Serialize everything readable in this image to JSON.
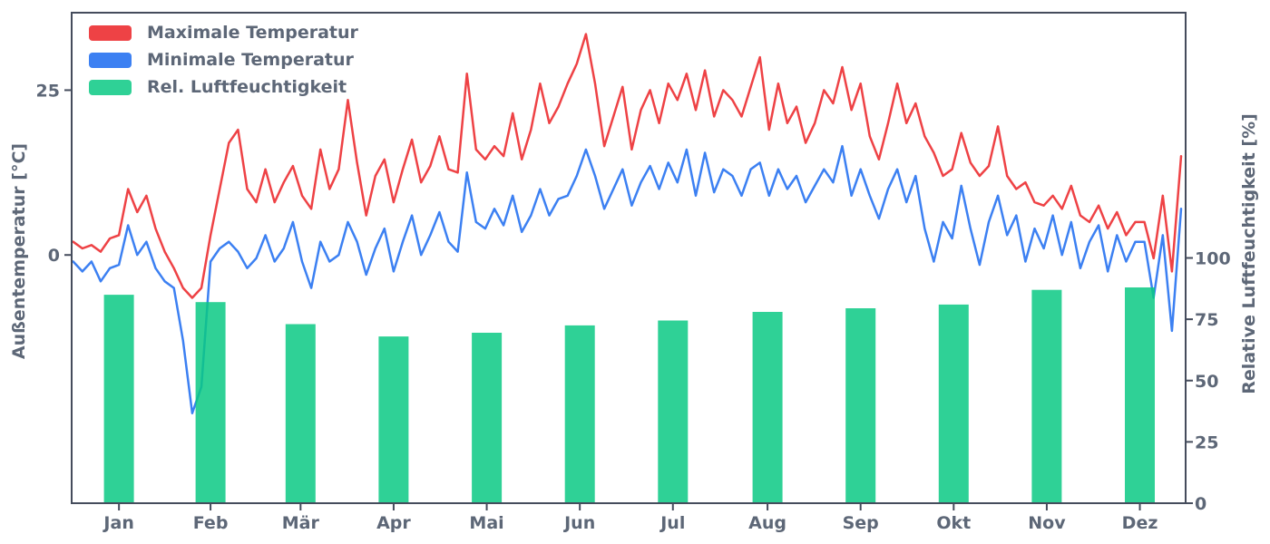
{
  "style": {
    "background": "#ffffff",
    "spine_color": "#454c5c",
    "text_color": "#5d6777"
  },
  "legend": {
    "items": [
      "Maximale Temperatur",
      "Minimale Temperatur",
      "Rel. Luftfeuchtigkeit"
    ]
  },
  "chart_data": {
    "type": "mixed",
    "title": "",
    "x_axis": {
      "tick_labels": [
        "Jan",
        "Feb",
        "Mär",
        "Apr",
        "Mai",
        "Jun",
        "Jul",
        "Aug",
        "Sep",
        "Okt",
        "Nov",
        "Dez"
      ],
      "month_center_days": [
        15,
        45,
        74.5,
        105,
        135.5,
        166,
        196.5,
        227.5,
        258,
        288.5,
        319,
        349.5
      ],
      "domain_days": [
        -0.5,
        364.5
      ],
      "grid": "off"
    },
    "left_axis": {
      "label": "Außentemperatur [°C]",
      "ticks": [
        0,
        25
      ],
      "range": [
        -37.65,
        36.75
      ]
    },
    "right_axis": {
      "label": "Relative Luftfeuchtigkeit [%]",
      "ticks": [
        0,
        25,
        50,
        75,
        100
      ],
      "range": [
        0,
        200
      ]
    },
    "legend_position": "upper-left",
    "series": [
      {
        "name": "Maximale Temperatur",
        "type": "line",
        "axis": "temperature",
        "color": "#ee4245",
        "unit": "°C",
        "sample_interval_days": 3,
        "values": [
          2,
          1,
          1.5,
          0.5,
          2.5,
          3,
          10,
          6.5,
          9,
          4,
          0.5,
          -2,
          -5,
          -6.5,
          -5,
          3,
          10,
          17,
          19,
          10,
          8,
          13,
          8,
          11,
          13.5,
          9,
          7,
          16,
          10,
          13,
          23.5,
          14,
          6,
          12,
          14.5,
          8,
          13,
          17.5,
          11,
          13.5,
          18,
          13,
          12.5,
          27.5,
          16,
          14.5,
          16.5,
          15,
          21.5,
          14.5,
          19,
          26,
          20,
          22.5,
          26,
          29,
          33.5,
          26,
          16.5,
          21,
          25.5,
          16,
          22,
          25,
          20,
          26,
          23.5,
          27.5,
          22,
          28,
          21,
          25,
          23.5,
          21,
          25.5,
          30,
          19,
          26,
          20,
          22.5,
          17,
          20,
          25,
          23,
          28.5,
          22,
          26,
          18,
          14.5,
          20,
          26,
          20,
          23,
          18,
          15.5,
          12,
          13,
          18.5,
          14,
          12,
          13.5,
          19.5,
          12,
          10,
          11,
          8,
          7.5,
          9,
          7,
          10.5,
          6,
          5,
          7.5,
          4,
          6.5,
          3,
          5,
          5,
          -0.5,
          9,
          -2.5,
          15
        ]
      },
      {
        "name": "Minimale Temperatur",
        "type": "line",
        "axis": "temperature",
        "color": "#3c80f2",
        "unit": "°C",
        "sample_interval_days": 3,
        "values": [
          -1,
          -2.5,
          -1,
          -4,
          -2,
          -1.5,
          4.5,
          0,
          2,
          -2,
          -4,
          -5,
          -13,
          -24,
          -20,
          -1,
          1,
          2,
          0.5,
          -2,
          -0.5,
          3,
          -1,
          1,
          5,
          -1,
          -5,
          2,
          -1,
          0,
          5,
          2,
          -3,
          1,
          4,
          -2.5,
          2,
          6,
          0,
          3,
          6.5,
          2,
          0.5,
          12.5,
          5,
          4,
          7,
          4.5,
          9,
          3.5,
          6,
          10,
          6,
          8.5,
          9,
          12,
          16,
          12,
          7,
          10,
          13,
          7.5,
          11,
          13.5,
          10,
          14,
          11,
          16,
          9,
          15.5,
          9.5,
          13,
          12,
          9,
          13,
          14,
          9,
          13,
          10,
          12,
          8,
          10.5,
          13,
          11,
          16.5,
          9,
          13,
          9,
          5.5,
          10,
          13,
          8,
          12,
          4,
          -1,
          5,
          2.5,
          10.5,
          4,
          -1.5,
          5,
          9,
          3,
          6,
          -1,
          4,
          1,
          6,
          0,
          5,
          -2,
          2,
          4.5,
          -2.5,
          3,
          -1,
          2,
          2,
          -6.5,
          3,
          -11.5,
          7
        ]
      },
      {
        "name": "Rel. Luftfeuchtigkeit",
        "type": "bar",
        "axis": "humidity",
        "color": "#2fd196",
        "fill": "#0ac984",
        "fill_opacity": 0.85,
        "unit": "%",
        "categories": [
          "Jan",
          "Feb",
          "Mär",
          "Apr",
          "Mai",
          "Jun",
          "Jul",
          "Aug",
          "Sep",
          "Okt",
          "Nov",
          "Dez"
        ],
        "values": [
          85,
          82,
          73,
          68,
          69.5,
          72.5,
          74.5,
          78,
          79.5,
          81,
          87,
          88
        ]
      }
    ]
  }
}
